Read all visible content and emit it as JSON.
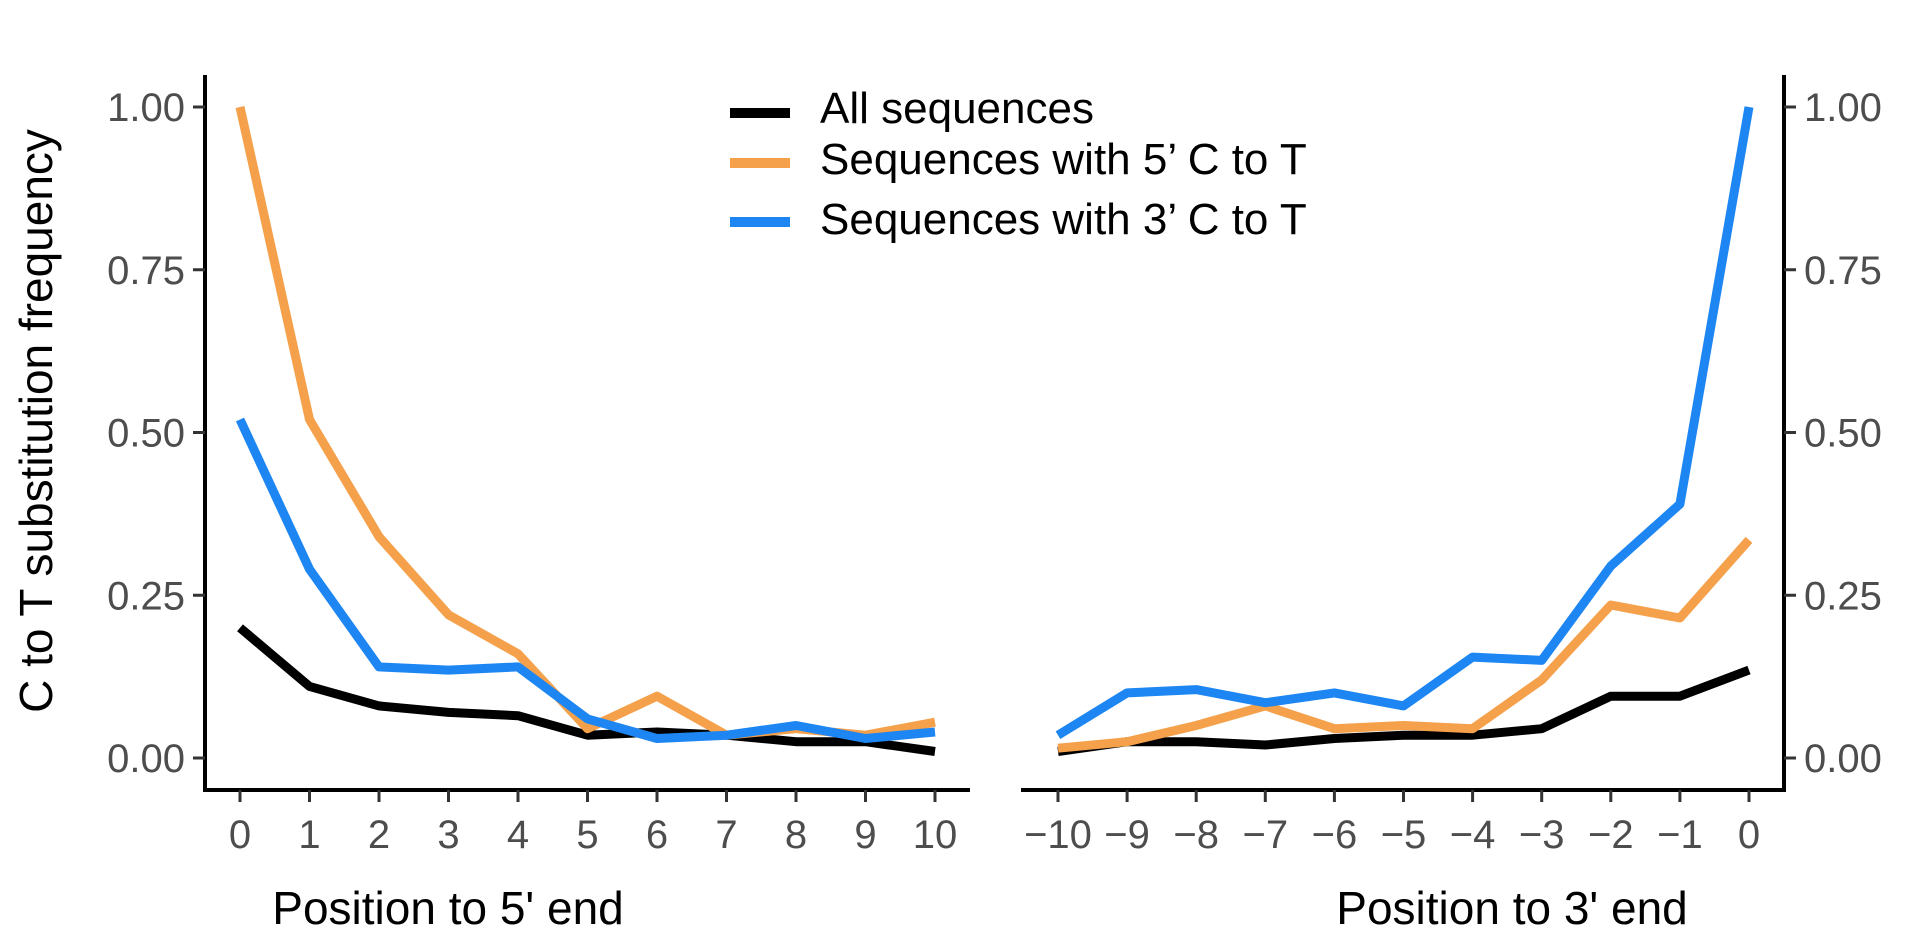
{
  "chart_data": {
    "type": "line",
    "ylabel": "C to T substitution frequency",
    "ylim": [
      0,
      1
    ],
    "yticks": [
      "0.00",
      "0.25",
      "0.50",
      "0.75",
      "1.00"
    ],
    "grid": false,
    "legend_position": "top-center",
    "legend": [
      {
        "name": "All sequences",
        "color": "#000000"
      },
      {
        "name": "Sequences with 5’ C to T",
        "color": "#F5A04A"
      },
      {
        "name": "Sequences with 3’ C to T",
        "color": "#1D86F2"
      }
    ],
    "panels": [
      {
        "xlabel": "Position to 5' end",
        "x": [
          0,
          1,
          2,
          3,
          4,
          5,
          6,
          7,
          8,
          9,
          10
        ],
        "xtick_labels": [
          "0",
          "1",
          "2",
          "3",
          "4",
          "5",
          "6",
          "7",
          "8",
          "9",
          "10"
        ],
        "series": [
          {
            "name": "All sequences",
            "color": "#000000",
            "values": [
              0.2,
              0.11,
              0.08,
              0.07,
              0.065,
              0.035,
              0.04,
              0.035,
              0.025,
              0.025,
              0.01
            ]
          },
          {
            "name": "Sequences with 5’ C to T",
            "color": "#F5A04A",
            "values": [
              1.0,
              0.52,
              0.34,
              0.22,
              0.16,
              0.045,
              0.095,
              0.035,
              0.045,
              0.035,
              0.055
            ]
          },
          {
            "name": "Sequences with 3’ C to T",
            "color": "#1D86F2",
            "values": [
              0.52,
              0.29,
              0.14,
              0.135,
              0.14,
              0.06,
              0.03,
              0.035,
              0.05,
              0.03,
              0.04
            ]
          }
        ]
      },
      {
        "xlabel": "Position to 3' end",
        "x": [
          -10,
          -9,
          -8,
          -7,
          -6,
          -5,
          -4,
          -3,
          -2,
          -1,
          0
        ],
        "xtick_labels": [
          "−10",
          "−9",
          "−8",
          "−7",
          "−6",
          "−5",
          "−4",
          "−3",
          "−2",
          "−1",
          "0"
        ],
        "series": [
          {
            "name": "All sequences",
            "color": "#000000",
            "values": [
              0.01,
              0.025,
              0.025,
              0.02,
              0.03,
              0.035,
              0.035,
              0.045,
              0.095,
              0.095,
              0.135
            ]
          },
          {
            "name": "Sequences with 5’ C to T",
            "color": "#F5A04A",
            "values": [
              0.015,
              0.025,
              0.05,
              0.08,
              0.045,
              0.05,
              0.045,
              0.12,
              0.235,
              0.215,
              0.335
            ]
          },
          {
            "name": "Sequences with 3’ C to T",
            "color": "#1D86F2",
            "values": [
              0.035,
              0.1,
              0.105,
              0.085,
              0.1,
              0.08,
              0.155,
              0.15,
              0.295,
              0.39,
              1.0
            ]
          }
        ]
      }
    ]
  }
}
